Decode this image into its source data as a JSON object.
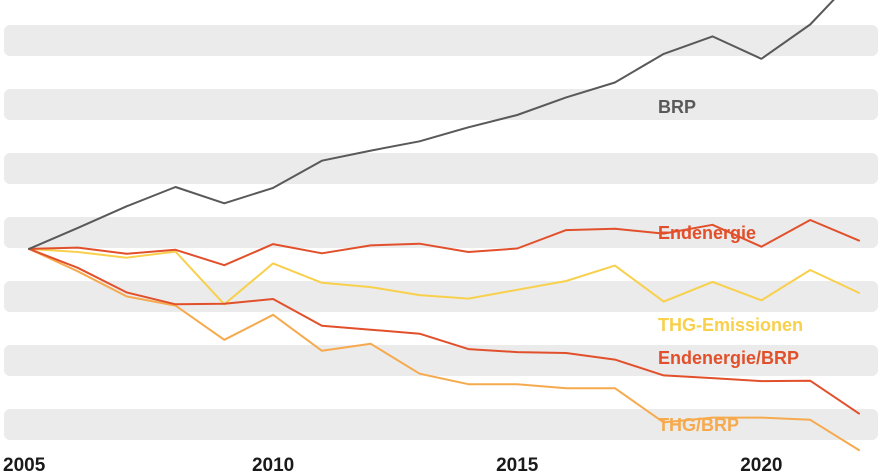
{
  "chart_data": {
    "type": "line",
    "title": "",
    "xlabel": "",
    "ylabel": "",
    "x": [
      2005,
      2006,
      2007,
      2008,
      2009,
      2010,
      2011,
      2012,
      2013,
      2014,
      2015,
      2016,
      2017,
      2018,
      2019,
      2020,
      2021,
      2022
    ],
    "xlim": [
      2005,
      2022
    ],
    "ylim": [
      59,
      156
    ],
    "x_ticks": [
      {
        "value": 2005,
        "label": "2005"
      },
      {
        "value": 2010,
        "label": "2010"
      },
      {
        "value": 2015,
        "label": "2015"
      },
      {
        "value": 2020,
        "label": "2020"
      }
    ],
    "grid": "alternating horizontal bands",
    "legend": "inline labels at right",
    "series": [
      {
        "name": "BRP",
        "color": "#595959",
        "values": [
          100,
          104.8,
          109.7,
          114.1,
          110.4,
          113.9,
          120.1,
          122.4,
          124.5,
          127.7,
          130.5,
          134.5,
          137.9,
          144.4,
          148.4,
          143.3,
          151.1,
          162.8
        ]
      },
      {
        "name": "Endenergie",
        "color": "#e1502b",
        "values": [
          100,
          100.3,
          98.9,
          99.8,
          96.3,
          101.1,
          99.0,
          100.8,
          101.2,
          99.3,
          100.1,
          104.3,
          104.6,
          103.5,
          105.5,
          100.5,
          106.6,
          101.9
        ]
      },
      {
        "name": "THG-Emissionen",
        "color": "#f8d04c",
        "values": [
          100,
          99.3,
          98.0,
          99.4,
          87.4,
          96.7,
          92.3,
          91.3,
          89.5,
          88.7,
          90.7,
          92.7,
          96.2,
          88.0,
          92.5,
          88.3,
          95.2,
          90.0
        ]
      },
      {
        "name": "Endenergie/BRP",
        "color": "#e1502b",
        "values": [
          100,
          95.7,
          90.1,
          87.4,
          87.5,
          88.6,
          82.5,
          81.6,
          80.7,
          77.2,
          76.5,
          76.3,
          74.8,
          71.2,
          70.6,
          69.9,
          70.0,
          62.5
        ]
      },
      {
        "name": "THG/BRP",
        "color": "#f6aa4d",
        "values": [
          100,
          94.9,
          89.2,
          87.1,
          79.3,
          85.0,
          76.8,
          78.4,
          71.6,
          69.2,
          69.2,
          68.3,
          68.3,
          60.5,
          61.6,
          61.6,
          61.1,
          54.2
        ]
      }
    ]
  }
}
